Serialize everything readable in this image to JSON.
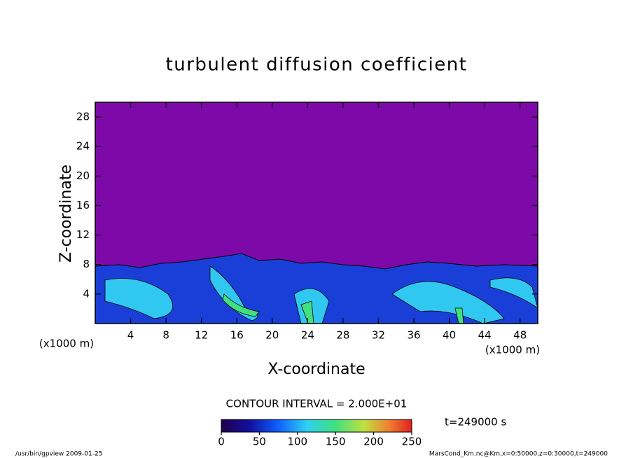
{
  "chart_data": {
    "type": "contour",
    "title": "turbulent diffusion coefficient",
    "xlabel": "X-coordinate",
    "ylabel": "Z-coordinate",
    "x_unit": "(x1000 m)",
    "y_unit": "(x1000 m)",
    "xlim": [
      0,
      50
    ],
    "xticks": [
      4,
      8,
      12,
      16,
      20,
      24,
      28,
      32,
      36,
      40,
      44,
      48
    ],
    "ylim": [
      0,
      30
    ],
    "yticks": [
      4,
      8,
      12,
      16,
      20,
      24,
      28
    ],
    "contour_interval": "CONTOUR INTERVAL = 2.000E+01",
    "colorbar": {
      "lim": [
        0,
        250
      ],
      "ticks": [
        0,
        50,
        100,
        150,
        200,
        250
      ]
    },
    "time_label": "t=249000 s",
    "footer_left": "/usr/bin/gpview  2009-01-25",
    "footer_right": "MarsCond_Km.nc@Km,x=0:50000,z=0:30000,t=249000"
  }
}
